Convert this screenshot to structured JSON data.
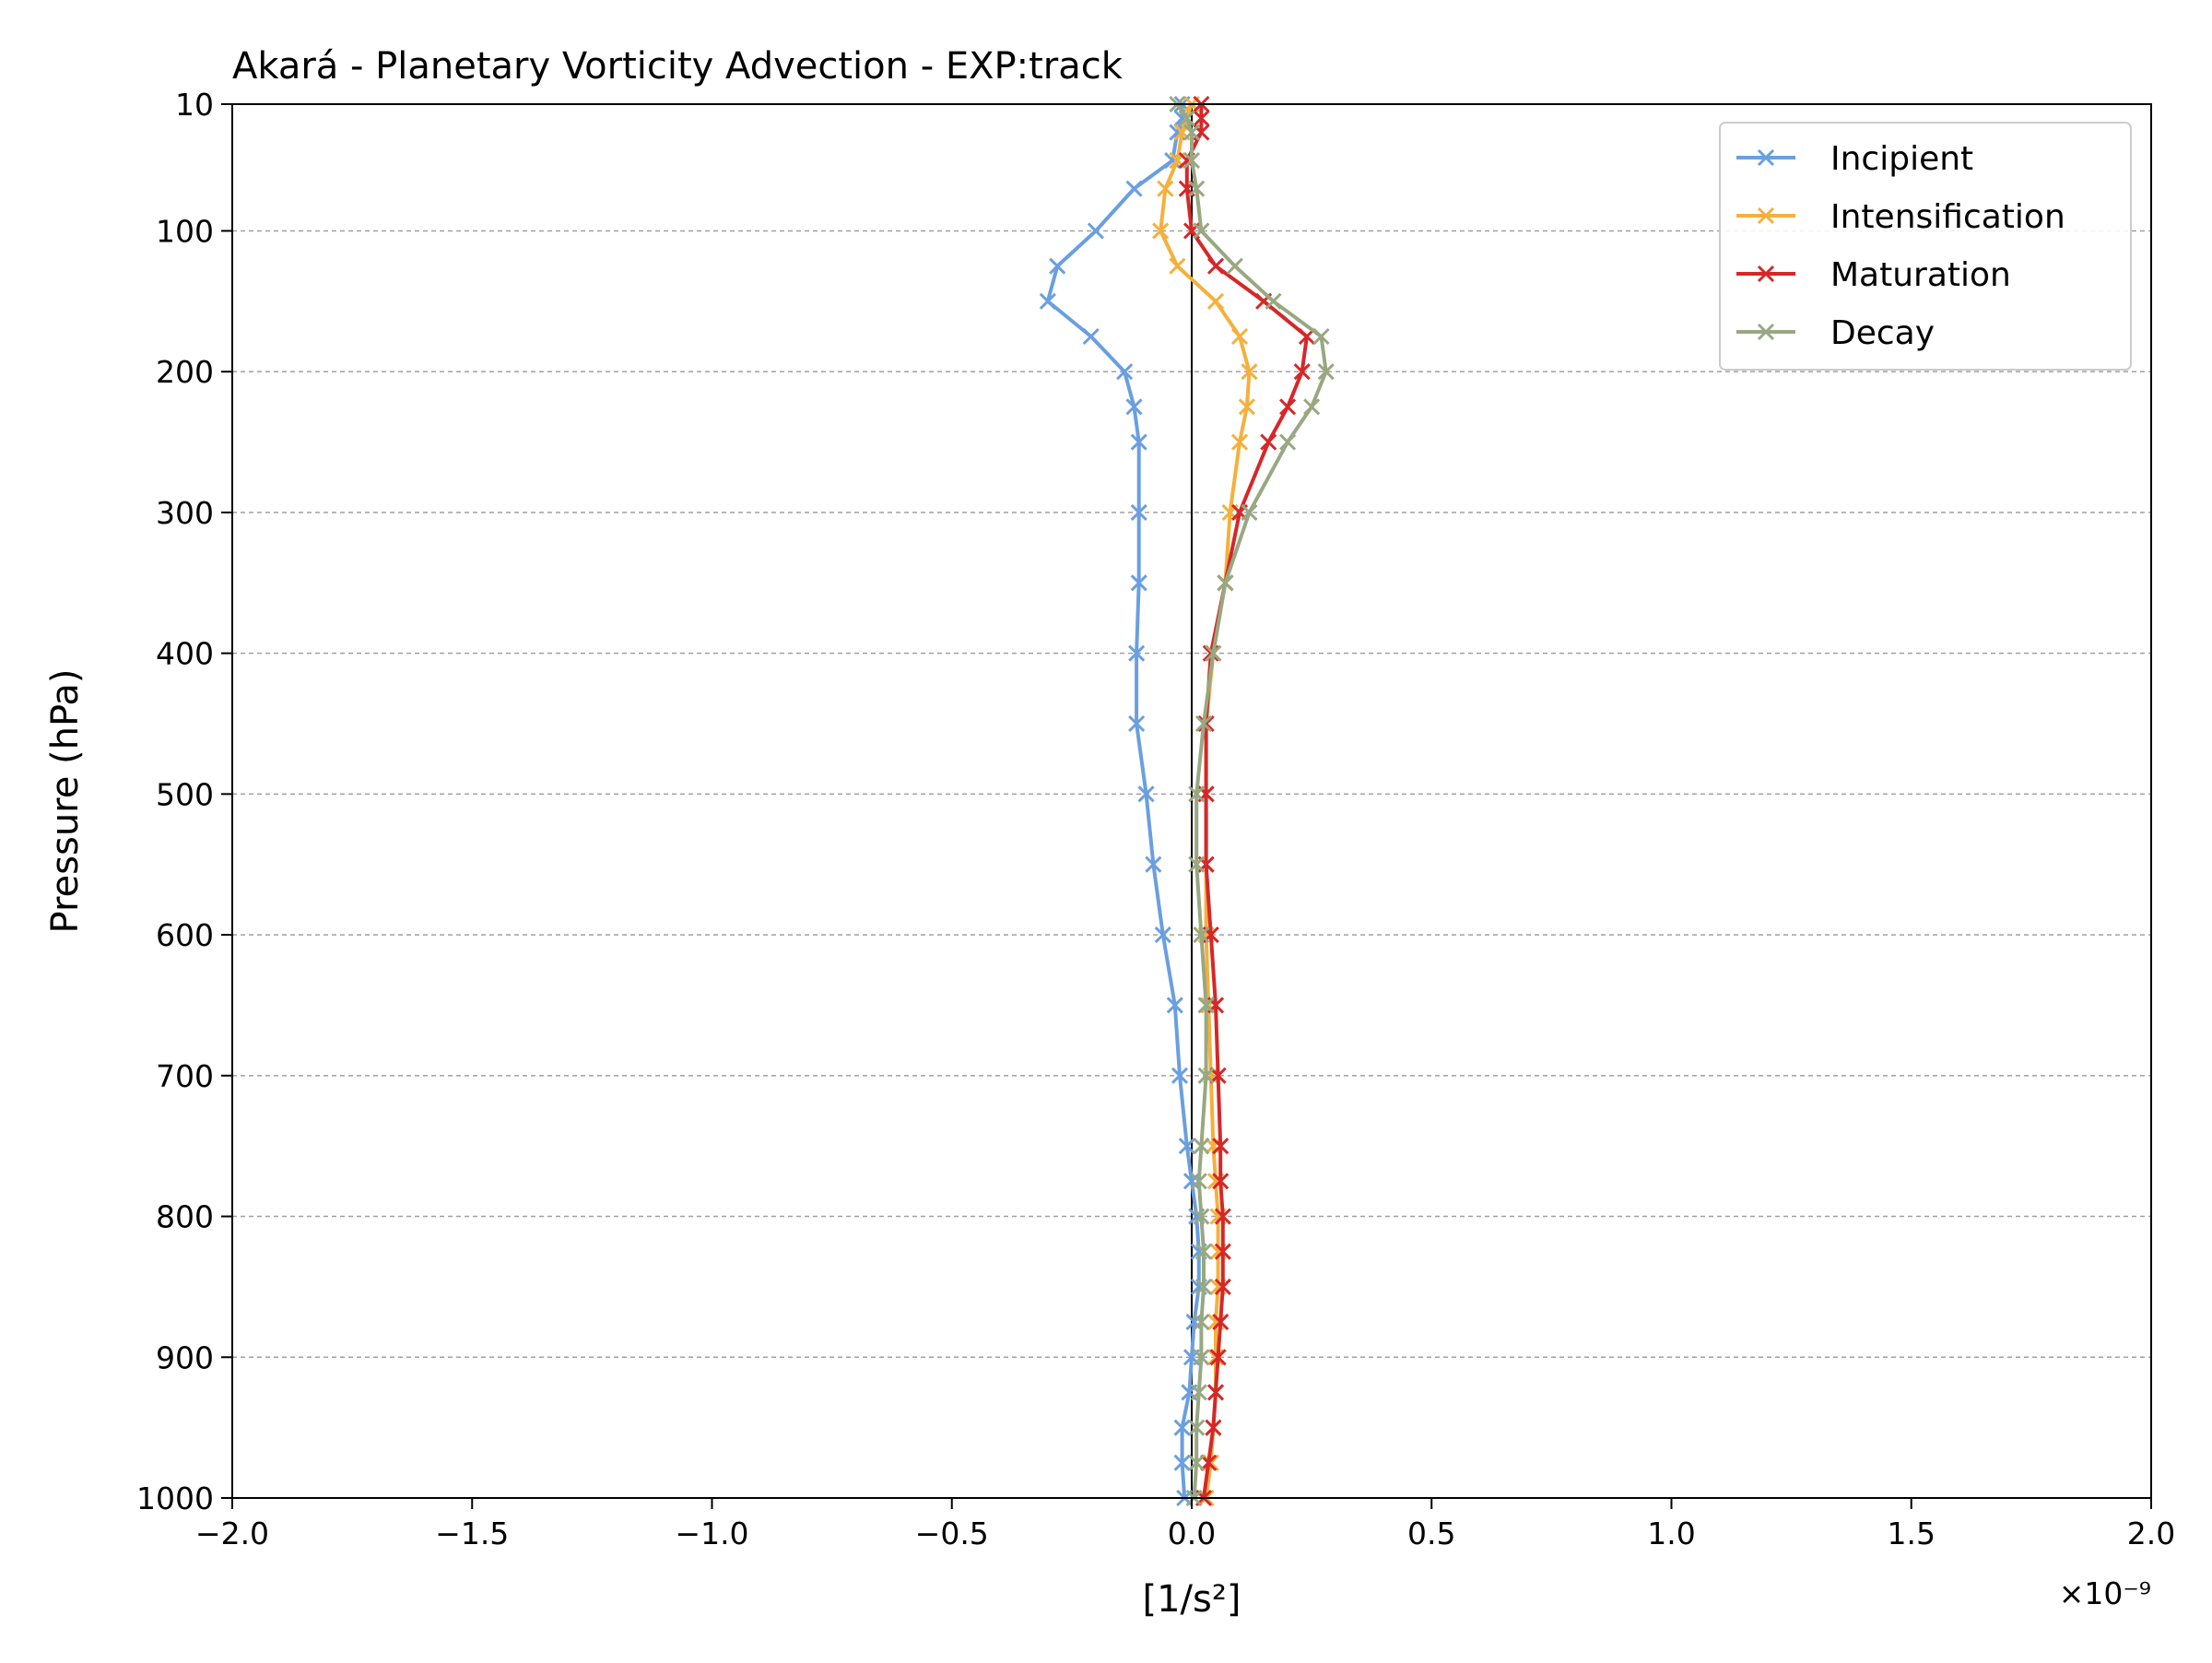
{
  "chart_data": {
    "type": "line",
    "title": "Akará - Planetary Vorticity Advection - EXP:track",
    "xlabel": "[1/s²]",
    "ylabel": "Pressure (hPa)",
    "x_offset_text": "×10⁻⁹",
    "x_scale": 1e-09,
    "xlim": [
      -2.0,
      2.0
    ],
    "ylim": [
      1000,
      10
    ],
    "y_inverted": true,
    "xticks": [
      -2.0,
      -1.5,
      -1.0,
      -0.5,
      0.0,
      0.5,
      1.0,
      1.5,
      2.0
    ],
    "xtick_labels": [
      "−2.0",
      "−1.5",
      "−1.0",
      "−0.5",
      "0.0",
      "0.5",
      "1.0",
      "1.5",
      "2.0"
    ],
    "yticks": [
      10,
      100,
      200,
      300,
      400,
      500,
      600,
      700,
      800,
      900,
      1000
    ],
    "ytick_labels": [
      "10",
      "100",
      "200",
      "300",
      "400",
      "500",
      "600",
      "700",
      "800",
      "900",
      "1000"
    ],
    "grid": "horizontal dashed",
    "zero_line": true,
    "legend_position": "upper right",
    "pressure_levels": [
      10,
      20,
      30,
      50,
      70,
      100,
      125,
      150,
      175,
      200,
      225,
      250,
      300,
      350,
      400,
      450,
      500,
      550,
      600,
      650,
      700,
      750,
      775,
      800,
      825,
      850,
      875,
      900,
      925,
      950,
      975,
      1000
    ],
    "series": [
      {
        "name": "Incipient",
        "color": "#6a9fe0",
        "values": [
          -0.02,
          -0.02,
          -0.03,
          -0.04,
          -0.12,
          -0.2,
          -0.28,
          -0.3,
          -0.21,
          -0.14,
          -0.12,
          -0.11,
          -0.11,
          -0.11,
          -0.115,
          -0.115,
          -0.095,
          -0.08,
          -0.06,
          -0.035,
          -0.025,
          -0.01,
          0.0,
          0.01,
          0.015,
          0.015,
          0.005,
          0.0,
          -0.005,
          -0.02,
          -0.02,
          -0.015
        ]
      },
      {
        "name": "Intensification",
        "color": "#f5b03c",
        "values": [
          0.0,
          -0.01,
          -0.02,
          -0.03,
          -0.055,
          -0.065,
          -0.03,
          0.05,
          0.1,
          0.12,
          0.115,
          0.1,
          0.08,
          0.07,
          0.045,
          0.03,
          0.03,
          0.03,
          0.03,
          0.035,
          0.04,
          0.045,
          0.05,
          0.055,
          0.055,
          0.055,
          0.05,
          0.05,
          0.05,
          0.045,
          0.04,
          0.03
        ]
      },
      {
        "name": "Maturation",
        "color": "#d62728",
        "values": [
          0.02,
          0.02,
          0.02,
          -0.01,
          -0.01,
          0.0,
          0.05,
          0.15,
          0.24,
          0.23,
          0.2,
          0.16,
          0.1,
          0.07,
          0.04,
          0.03,
          0.03,
          0.03,
          0.04,
          0.05,
          0.055,
          0.06,
          0.06,
          0.065,
          0.065,
          0.065,
          0.06,
          0.055,
          0.05,
          0.045,
          0.035,
          0.025
        ]
      },
      {
        "name": "Decay",
        "color": "#98a882",
        "values": [
          -0.03,
          -0.01,
          0.0,
          0.0,
          0.01,
          0.02,
          0.09,
          0.17,
          0.27,
          0.28,
          0.25,
          0.2,
          0.12,
          0.07,
          0.045,
          0.025,
          0.01,
          0.01,
          0.02,
          0.03,
          0.03,
          0.02,
          0.015,
          0.02,
          0.025,
          0.025,
          0.02,
          0.02,
          0.015,
          0.01,
          0.01,
          0.005
        ]
      }
    ]
  }
}
